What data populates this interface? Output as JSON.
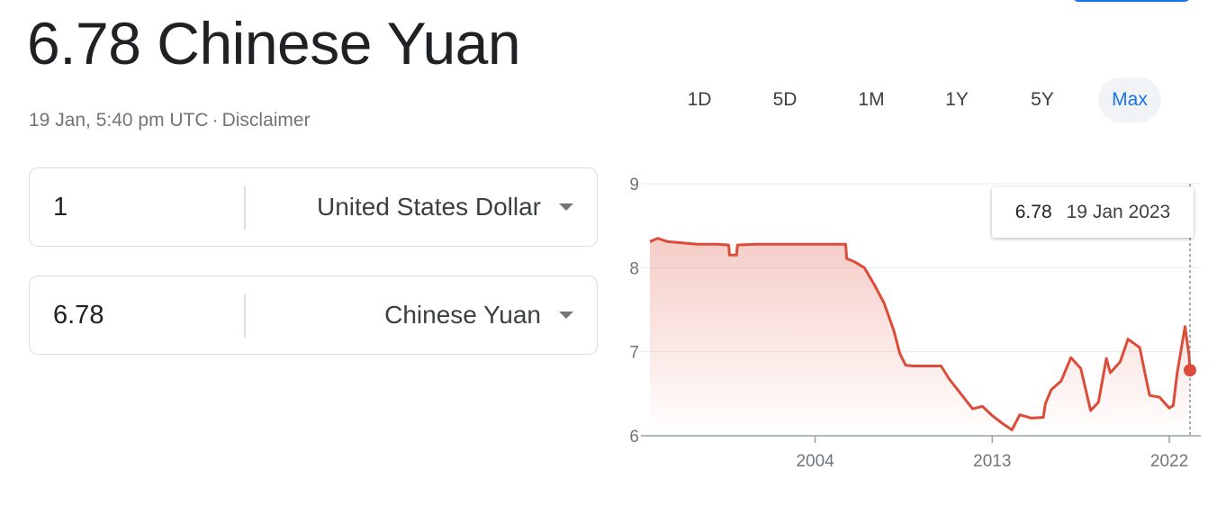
{
  "header": {
    "title": "6.78 Chinese Yuan",
    "timestamp": "19 Jan, 5:40 pm UTC",
    "separator": "·",
    "disclaimer": "Disclaimer"
  },
  "converter": {
    "from": {
      "amount": "1",
      "currency": "United States Dollar"
    },
    "to": {
      "amount": "6.78",
      "currency": "Chinese Yuan"
    }
  },
  "range_tabs": [
    {
      "label": "1D",
      "active": false
    },
    {
      "label": "5D",
      "active": false
    },
    {
      "label": "1M",
      "active": false
    },
    {
      "label": "1Y",
      "active": false
    },
    {
      "label": "5Y",
      "active": false
    },
    {
      "label": "Max",
      "active": true
    }
  ],
  "tooltip": {
    "value": "6.78",
    "date": "19 Jan 2023"
  },
  "colors": {
    "line": "#dd4b39",
    "accent": "#1a73e8",
    "grid": "#e8eaed"
  },
  "chart_data": {
    "type": "line",
    "title": "",
    "xlabel": "",
    "ylabel": "",
    "x_ticks": [
      "2004",
      "2013",
      "2022"
    ],
    "y_ticks": [
      6,
      7,
      8,
      9
    ],
    "ylim": [
      6,
      9
    ],
    "xlim": [
      1995.6,
      2023.6
    ],
    "grid": true,
    "series": [
      {
        "values": [
          [
            1995.6,
            8.31
          ],
          [
            1996.0,
            8.35
          ],
          [
            1996.5,
            8.31
          ],
          [
            1997.0,
            8.3
          ],
          [
            1998.0,
            8.28
          ],
          [
            1999.0,
            8.28
          ],
          [
            1999.6,
            8.27
          ],
          [
            1999.65,
            8.15
          ],
          [
            2000.0,
            8.15
          ],
          [
            2000.05,
            8.27
          ],
          [
            2001.0,
            8.28
          ],
          [
            2002.0,
            8.28
          ],
          [
            2003.0,
            8.28
          ],
          [
            2004.0,
            8.28
          ],
          [
            2005.55,
            8.28
          ],
          [
            2005.6,
            8.11
          ],
          [
            2006.0,
            8.07
          ],
          [
            2006.5,
            8.0
          ],
          [
            2007.0,
            7.8
          ],
          [
            2007.5,
            7.58
          ],
          [
            2008.0,
            7.25
          ],
          [
            2008.3,
            6.98
          ],
          [
            2008.6,
            6.84
          ],
          [
            2009.0,
            6.83
          ],
          [
            2010.0,
            6.83
          ],
          [
            2010.4,
            6.83
          ],
          [
            2010.8,
            6.68
          ],
          [
            2011.5,
            6.47
          ],
          [
            2012.0,
            6.32
          ],
          [
            2012.5,
            6.35
          ],
          [
            2013.0,
            6.24
          ],
          [
            2013.5,
            6.15
          ],
          [
            2014.0,
            6.07
          ],
          [
            2014.4,
            6.25
          ],
          [
            2015.0,
            6.21
          ],
          [
            2015.6,
            6.22
          ],
          [
            2015.7,
            6.38
          ],
          [
            2016.0,
            6.55
          ],
          [
            2016.5,
            6.65
          ],
          [
            2017.0,
            6.93
          ],
          [
            2017.5,
            6.8
          ],
          [
            2018.0,
            6.3
          ],
          [
            2018.4,
            6.4
          ],
          [
            2018.8,
            6.92
          ],
          [
            2019.0,
            6.75
          ],
          [
            2019.5,
            6.88
          ],
          [
            2019.9,
            7.15
          ],
          [
            2020.5,
            7.05
          ],
          [
            2020.8,
            6.7
          ],
          [
            2021.0,
            6.48
          ],
          [
            2021.5,
            6.46
          ],
          [
            2022.0,
            6.33
          ],
          [
            2022.2,
            6.36
          ],
          [
            2022.4,
            6.75
          ],
          [
            2022.8,
            7.3
          ],
          [
            2023.0,
            6.96
          ],
          [
            2023.05,
            6.78
          ]
        ]
      }
    ],
    "current_point": {
      "x": 2023.05,
      "y": 6.78
    }
  }
}
